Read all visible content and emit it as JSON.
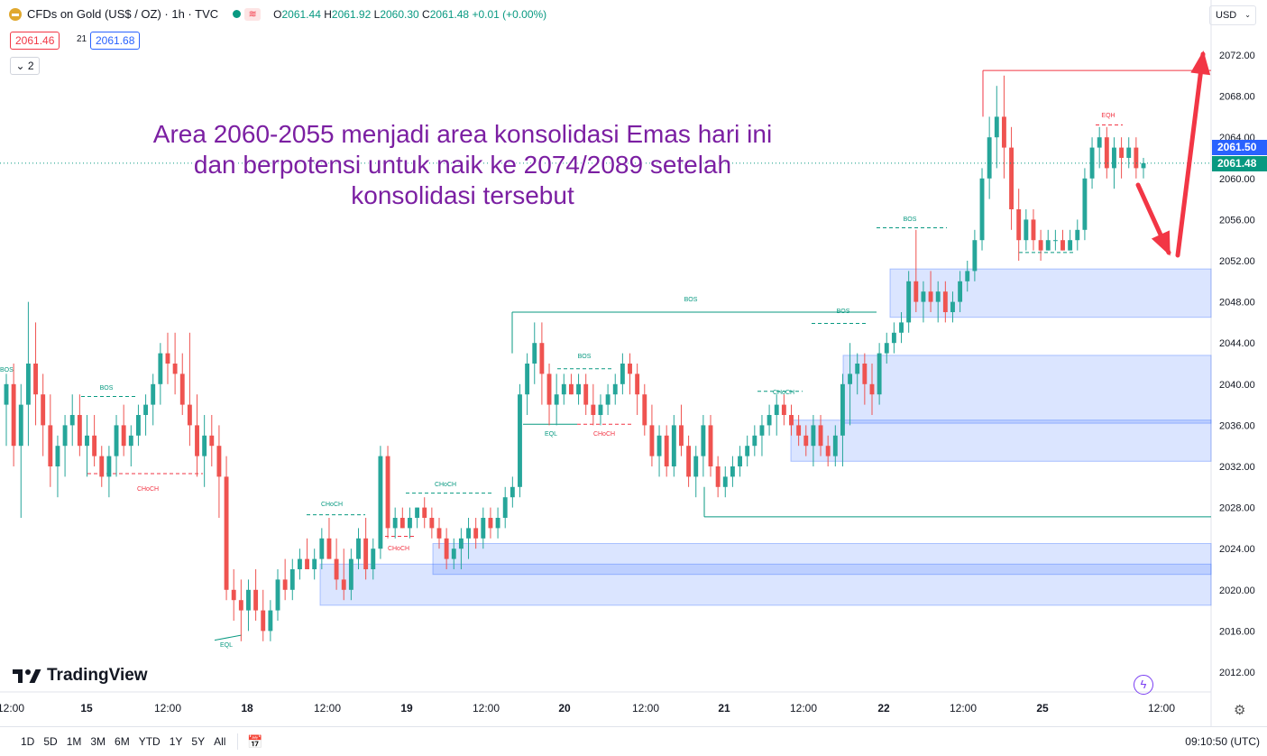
{
  "header": {
    "symbol": "CFDs on Gold (US$ / OZ) · 1h · TVC",
    "open_label": "O",
    "open": "2061.44",
    "high_label": "H",
    "high": "2061.92",
    "low_label": "L",
    "low": "2060.30",
    "close_label": "C",
    "close": "2061.48",
    "change": "+0.01 (+0.00%)"
  },
  "trade": {
    "sell": "2061.46",
    "spread": "21",
    "buy": "2061.68"
  },
  "indicators_collapsed": "2",
  "currency": "USD",
  "annotation": {
    "line1": "Area 2060-2055 menjadi area konsolidasi Emas hari ini",
    "line2": "dan berpotensi untuk naik ke 2074/2089 setelah",
    "line3": "konsolidasi tersebut"
  },
  "branding": "TradingView",
  "bottom_bar": {
    "ranges": [
      "1D",
      "5D",
      "1M",
      "3M",
      "6M",
      "YTD",
      "1Y",
      "5Y",
      "All"
    ],
    "clock": "09:10:50 (UTC)"
  },
  "chart_data": {
    "type": "candlestick",
    "y_axis": {
      "min": 2010,
      "max": 2074,
      "ticks": [
        2072,
        2068,
        2064,
        2060,
        2056,
        2052,
        2048,
        2044,
        2040,
        2036,
        2032,
        2028,
        2024,
        2020,
        2016,
        2012
      ]
    },
    "x_axis": {
      "labels": [
        "12:00",
        "15",
        "12:00",
        "18",
        "12:00",
        "19",
        "12:00",
        "20",
        "12:00",
        "21",
        "12:00",
        "22",
        "12:00",
        "25",
        "12:00"
      ]
    },
    "price_labels": [
      {
        "text": "2061.50",
        "value": 2061.5,
        "color": "#2962ff"
      },
      {
        "text": "2061.48",
        "value": 2061.48,
        "color": "#089981"
      }
    ],
    "colors": {
      "up": "#26a69a",
      "down": "#ef5350",
      "zone": "#2962ff"
    },
    "candles": [
      [
        2038,
        2041,
        2034,
        2040
      ],
      [
        2040,
        2042,
        2032,
        2034
      ],
      [
        2034,
        2040,
        2027,
        2038
      ],
      [
        2038,
        2048,
        2034,
        2042
      ],
      [
        2042,
        2046,
        2036,
        2039
      ],
      [
        2039,
        2041,
        2033,
        2036
      ],
      [
        2036,
        2039,
        2030,
        2032
      ],
      [
        2032,
        2035,
        2029,
        2034
      ],
      [
        2034,
        2037,
        2031,
        2036
      ],
      [
        2036,
        2039,
        2034,
        2037
      ],
      [
        2037,
        2039,
        2033,
        2034
      ],
      [
        2034,
        2037,
        2031,
        2035
      ],
      [
        2035,
        2037,
        2032,
        2033
      ],
      [
        2033,
        2034,
        2030,
        2031
      ],
      [
        2031,
        2034,
        2029,
        2033
      ],
      [
        2033,
        2037,
        2031,
        2036
      ],
      [
        2036,
        2038,
        2033,
        2034
      ],
      [
        2034,
        2036,
        2032,
        2035
      ],
      [
        2035,
        2038,
        2034,
        2037
      ],
      [
        2037,
        2039,
        2035,
        2038
      ],
      [
        2038,
        2041,
        2036,
        2040
      ],
      [
        2040,
        2044,
        2038,
        2043
      ],
      [
        2043,
        2045,
        2040,
        2042
      ],
      [
        2042,
        2045,
        2039,
        2041
      ],
      [
        2041,
        2043,
        2037,
        2038
      ],
      [
        2038,
        2045,
        2034,
        2036
      ],
      [
        2036,
        2039,
        2031,
        2033
      ],
      [
        2033,
        2037,
        2030,
        2035
      ],
      [
        2035,
        2037,
        2032,
        2034
      ],
      [
        2034,
        2036,
        2027,
        2031
      ],
      [
        2031,
        2033,
        2019,
        2020
      ],
      [
        2020,
        2022,
        2017,
        2019
      ],
      [
        2019,
        2021,
        2015,
        2018
      ],
      [
        2018,
        2021,
        2016,
        2020
      ],
      [
        2020,
        2022,
        2017,
        2018
      ],
      [
        2018,
        2020,
        2015,
        2016
      ],
      [
        2016,
        2019,
        2015,
        2018
      ],
      [
        2018,
        2022,
        2017,
        2021
      ],
      [
        2021,
        2023,
        2019,
        2020
      ],
      [
        2020,
        2023,
        2019,
        2022
      ],
      [
        2022,
        2024,
        2021,
        2023
      ],
      [
        2023,
        2025,
        2022,
        2022
      ],
      [
        2022,
        2024,
        2021,
        2023
      ],
      [
        2023,
        2026,
        2022,
        2025
      ],
      [
        2025,
        2027,
        2023,
        2023
      ],
      [
        2023,
        2025,
        2020,
        2021
      ],
      [
        2021,
        2024,
        2019,
        2020
      ],
      [
        2020,
        2024,
        2019,
        2023
      ],
      [
        2023,
        2026,
        2022,
        2025
      ],
      [
        2025,
        2027,
        2021,
        2022
      ],
      [
        2022,
        2025,
        2021,
        2024
      ],
      [
        2024,
        2034,
        2023,
        2033
      ],
      [
        2033,
        2034,
        2025,
        2026
      ],
      [
        2026,
        2028,
        2025,
        2027
      ],
      [
        2027,
        2028,
        2026,
        2026
      ],
      [
        2026,
        2028,
        2025,
        2027
      ],
      [
        2027,
        2028,
        2026,
        2028
      ],
      [
        2028,
        2029,
        2026,
        2027
      ],
      [
        2027,
        2028,
        2025,
        2026
      ],
      [
        2026,
        2027,
        2024,
        2025
      ],
      [
        2025,
        2026,
        2022,
        2023
      ],
      [
        2023,
        2025,
        2022,
        2024
      ],
      [
        2024,
        2026,
        2022,
        2025
      ],
      [
        2025,
        2027,
        2023,
        2026
      ],
      [
        2026,
        2027,
        2024,
        2025
      ],
      [
        2025,
        2028,
        2024,
        2027
      ],
      [
        2027,
        2028,
        2025,
        2026
      ],
      [
        2026,
        2028,
        2025,
        2027
      ],
      [
        2027,
        2030,
        2026,
        2029
      ],
      [
        2029,
        2031,
        2028,
        2030
      ],
      [
        2030,
        2040,
        2029,
        2039
      ],
      [
        2039,
        2043,
        2037,
        2042
      ],
      [
        2042,
        2046,
        2040,
        2044
      ],
      [
        2044,
        2046,
        2038,
        2041
      ],
      [
        2041,
        2042,
        2036,
        2038
      ],
      [
        2038,
        2041,
        2036,
        2039
      ],
      [
        2039,
        2041,
        2038,
        2040
      ],
      [
        2040,
        2041,
        2039,
        2039
      ],
      [
        2039,
        2041,
        2038,
        2040
      ],
      [
        2040,
        2041,
        2037,
        2038
      ],
      [
        2038,
        2040,
        2036,
        2037
      ],
      [
        2037,
        2039,
        2036,
        2038
      ],
      [
        2038,
        2040,
        2037,
        2039
      ],
      [
        2039,
        2041,
        2038,
        2040
      ],
      [
        2040,
        2043,
        2039,
        2042
      ],
      [
        2042,
        2043,
        2039,
        2041
      ],
      [
        2041,
        2042,
        2037,
        2039
      ],
      [
        2039,
        2040,
        2035,
        2036
      ],
      [
        2036,
        2038,
        2032,
        2033
      ],
      [
        2033,
        2036,
        2031,
        2035
      ],
      [
        2035,
        2036,
        2031,
        2032
      ],
      [
        2032,
        2037,
        2031,
        2036
      ],
      [
        2036,
        2038,
        2033,
        2034
      ],
      [
        2034,
        2035,
        2030,
        2031
      ],
      [
        2031,
        2034,
        2029,
        2033
      ],
      [
        2033,
        2037,
        2031,
        2036
      ],
      [
        2036,
        2037,
        2031,
        2032
      ],
      [
        2032,
        2033,
        2029,
        2030
      ],
      [
        2030,
        2032,
        2029,
        2031
      ],
      [
        2031,
        2033,
        2030,
        2032
      ],
      [
        2032,
        2034,
        2031,
        2033
      ],
      [
        2033,
        2035,
        2032,
        2034
      ],
      [
        2034,
        2036,
        2033,
        2035
      ],
      [
        2035,
        2037,
        2033,
        2036
      ],
      [
        2036,
        2038,
        2035,
        2037
      ],
      [
        2037,
        2039,
        2035,
        2038
      ],
      [
        2038,
        2039,
        2036,
        2037
      ],
      [
        2037,
        2038,
        2035,
        2036
      ],
      [
        2036,
        2037,
        2034,
        2035
      ],
      [
        2035,
        2036,
        2033,
        2034
      ],
      [
        2034,
        2037,
        2032,
        2036
      ],
      [
        2036,
        2037,
        2033,
        2034
      ],
      [
        2034,
        2035,
        2032,
        2033
      ],
      [
        2033,
        2036,
        2032,
        2035
      ],
      [
        2035,
        2041,
        2032,
        2040
      ],
      [
        2040,
        2044,
        2036,
        2041
      ],
      [
        2041,
        2043,
        2039,
        2042
      ],
      [
        2042,
        2043,
        2038,
        2040
      ],
      [
        2040,
        2042,
        2037,
        2039
      ],
      [
        2039,
        2044,
        2038,
        2043
      ],
      [
        2043,
        2045,
        2042,
        2044
      ],
      [
        2044,
        2046,
        2043,
        2045
      ],
      [
        2045,
        2047,
        2044,
        2046
      ],
      [
        2046,
        2051,
        2045,
        2050
      ],
      [
        2050,
        2055,
        2047,
        2048
      ],
      [
        2048,
        2050,
        2046,
        2049
      ],
      [
        2049,
        2051,
        2047,
        2048
      ],
      [
        2048,
        2050,
        2046,
        2049
      ],
      [
        2049,
        2050,
        2046,
        2047
      ],
      [
        2047,
        2049,
        2046,
        2048
      ],
      [
        2048,
        2051,
        2047,
        2050
      ],
      [
        2050,
        2052,
        2049,
        2051
      ],
      [
        2051,
        2055,
        2050,
        2054
      ],
      [
        2054,
        2061,
        2053,
        2060
      ],
      [
        2060,
        2066,
        2058,
        2064
      ],
      [
        2064,
        2069,
        2061,
        2066
      ],
      [
        2066,
        2070,
        2060,
        2063
      ],
      [
        2063,
        2065,
        2055,
        2057
      ],
      [
        2057,
        2059,
        2052,
        2054
      ],
      [
        2054,
        2057,
        2053,
        2056
      ],
      [
        2056,
        2057,
        2053,
        2054
      ],
      [
        2054,
        2055,
        2052,
        2053
      ],
      [
        2053,
        2055,
        2053,
        2054
      ],
      [
        2054,
        2055,
        2053,
        2054
      ],
      [
        2054,
        2055,
        2053,
        2053
      ],
      [
        2053,
        2055,
        2053,
        2054
      ],
      [
        2054,
        2056,
        2053,
        2055
      ],
      [
        2055,
        2061,
        2054,
        2060
      ],
      [
        2060,
        2064,
        2059,
        2063
      ],
      [
        2063,
        2065,
        2061,
        2064
      ],
      [
        2064,
        2065,
        2060,
        2061
      ],
      [
        2061,
        2064,
        2059,
        2063
      ],
      [
        2063,
        2064,
        2060,
        2062
      ],
      [
        2062,
        2064,
        2061,
        2063
      ],
      [
        2063,
        2064,
        2060,
        2061
      ],
      [
        2061,
        2062,
        2060,
        2061.48
      ]
    ],
    "structure_labels": [
      "BOS",
      "BOS",
      "BOS",
      "BOS",
      "BOS",
      "CHoCH",
      "CHoCH",
      "CHoCH",
      "CHoCH",
      "CHoCH",
      "CHoCH",
      "EQL",
      "EQL",
      "EQH"
    ],
    "demand_zones": [
      [
        2018.5,
        2022.5
      ],
      [
        2021.5,
        2024.5
      ],
      [
        2032.5,
        2036.5
      ],
      [
        2036.2,
        2042.8
      ],
      [
        2046.5,
        2051.2
      ]
    ],
    "targets": [
      "2074",
      "2089"
    ]
  }
}
